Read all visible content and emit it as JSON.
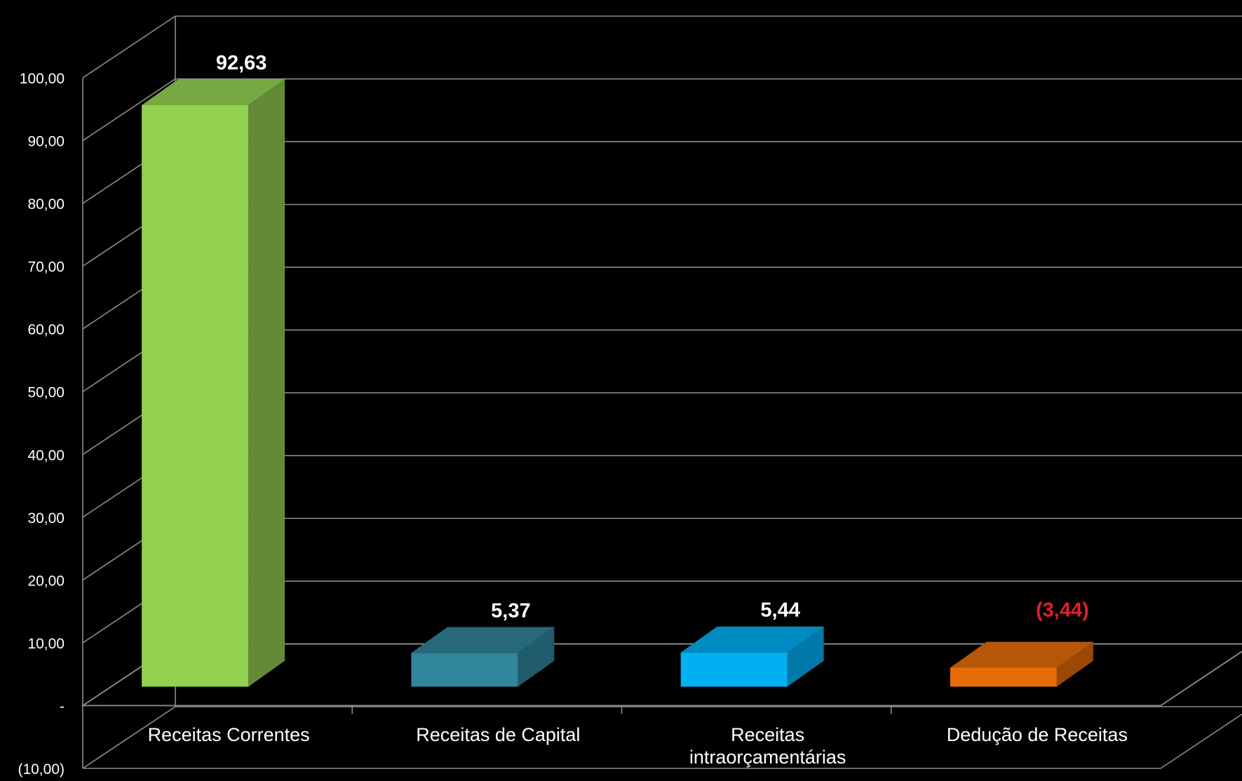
{
  "chart_data": {
    "type": "bar",
    "categories": [
      [
        "Receitas Correntes"
      ],
      [
        "Receitas de Capital"
      ],
      [
        "Receitas",
        "intraorçamentárias"
      ],
      [
        "Dedução de Receitas"
      ]
    ],
    "values": [
      92.63,
      5.37,
      5.44,
      -3.44
    ],
    "value_labels": [
      "92,63",
      "5,37",
      "5,44",
      "(3,44)"
    ],
    "ylim": [
      -10,
      100
    ],
    "y_tick_labels": [
      "(10,00)",
      "-",
      "10,00",
      "20,00",
      "30,00",
      "40,00",
      "50,00",
      "60,00",
      "70,00",
      "80,00",
      "90,00",
      "100,00"
    ],
    "grid": true,
    "style": "3d-column",
    "colors": {
      "background": "#000000",
      "grid": "#8c8c8c",
      "text": "#ffffff",
      "negative_label": "#e0202a",
      "bars": [
        {
          "front": "#92d050",
          "side": "#658a37",
          "top": "#76a942"
        },
        {
          "front": "#31859c",
          "side": "#215c6c",
          "top": "#27697b"
        },
        {
          "front": "#00b0f0",
          "side": "#0079a8",
          "top": "#008cc2"
        },
        {
          "front": "#e36c09",
          "side": "#9b4806",
          "top": "#b75607"
        }
      ]
    }
  }
}
